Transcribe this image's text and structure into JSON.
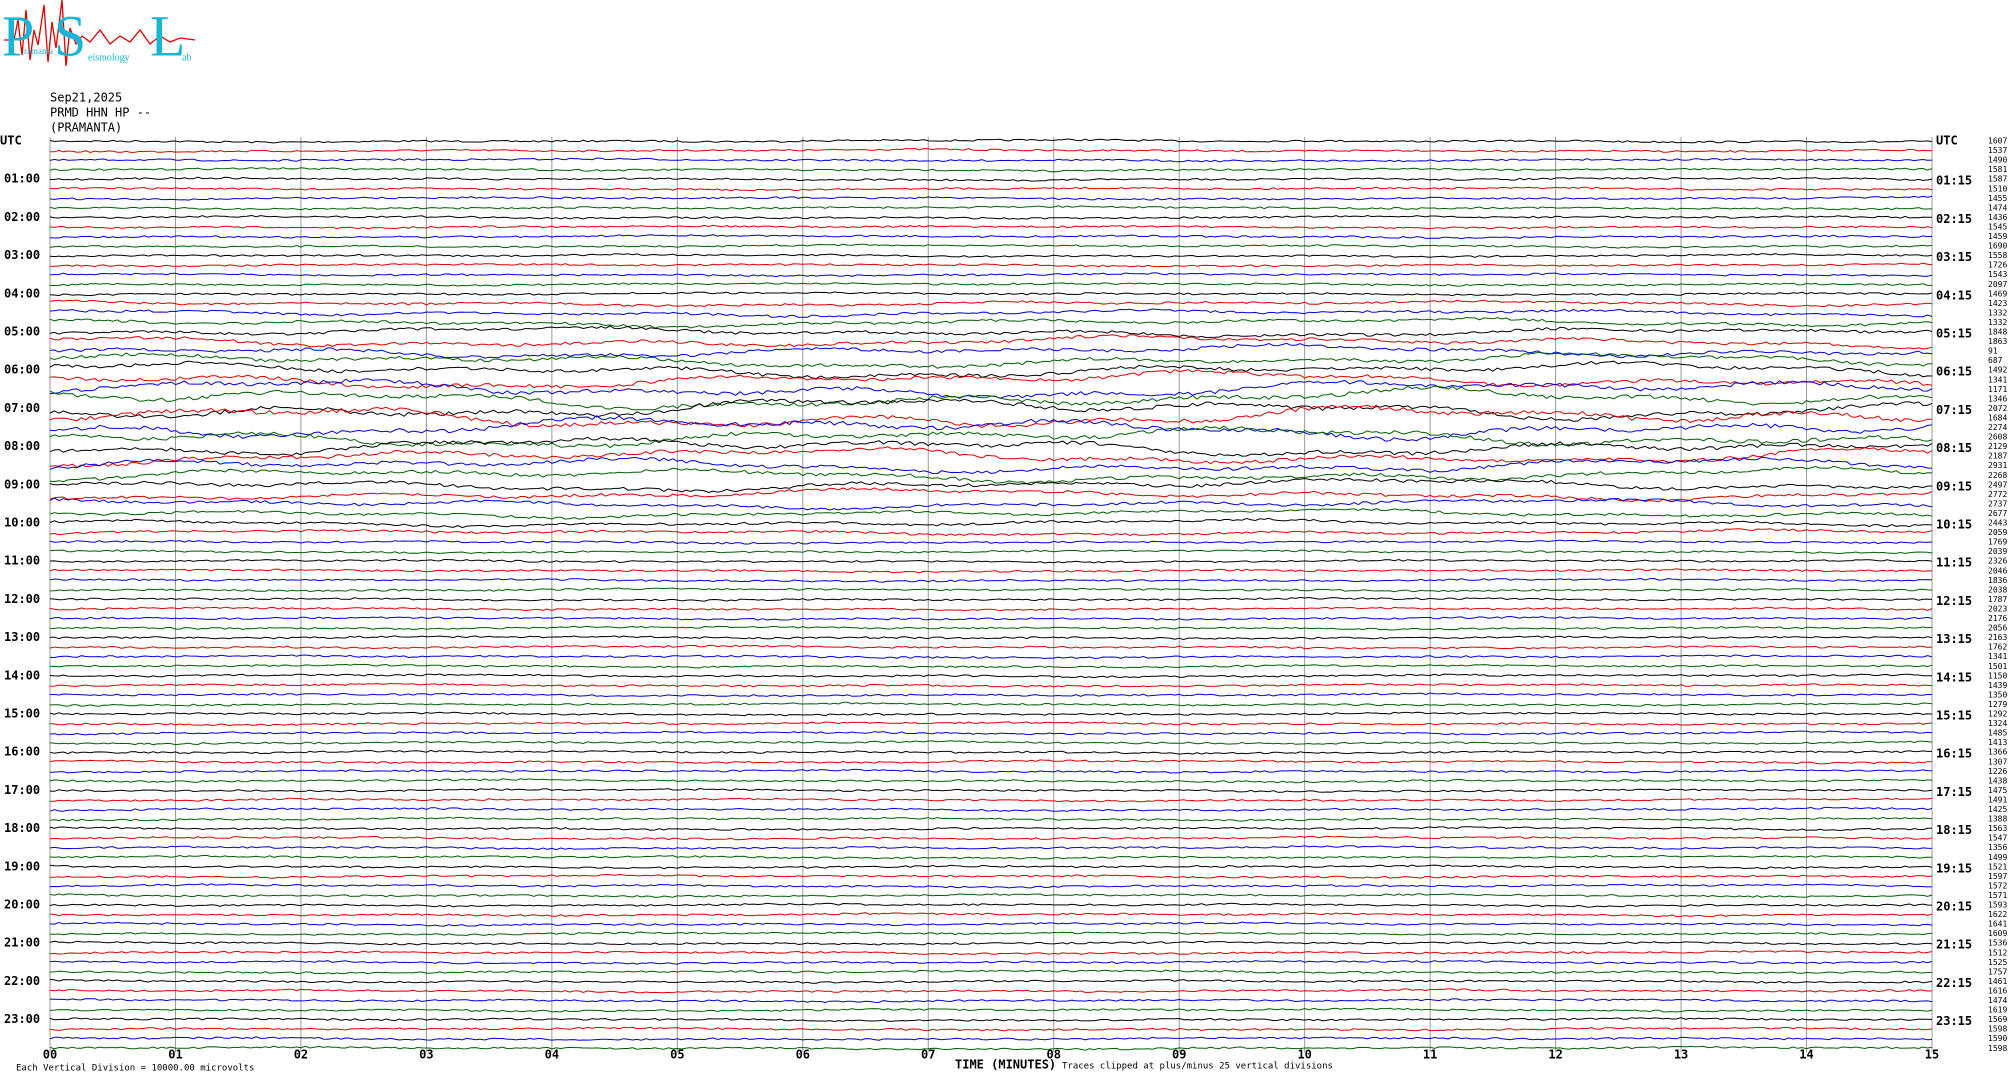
{
  "logo": {
    "p": "P",
    "s": "S",
    "l": "L",
    "small1": "ramanta",
    "small2": "eismology",
    "small3": "ab"
  },
  "header": {
    "date": "Sep21,2025",
    "station": "PRMD HHN HP --",
    "place": "(PRAMANTA)"
  },
  "left_labels": [
    "UTC",
    "01:00",
    "02:00",
    "03:00",
    "04:00",
    "05:00",
    "06:00",
    "07:00",
    "08:00",
    "09:00",
    "10:00",
    "11:00",
    "12:00",
    "13:00",
    "14:00",
    "15:00",
    "16:00",
    "17:00",
    "18:00",
    "19:00",
    "20:00",
    "21:00",
    "22:00",
    "23:00"
  ],
  "right_labels": [
    "UTC",
    "01:15",
    "02:15",
    "03:15",
    "04:15",
    "05:15",
    "06:15",
    "07:15",
    "08:15",
    "09:15",
    "10:15",
    "11:15",
    "12:15",
    "13:15",
    "14:15",
    "15:15",
    "16:15",
    "17:15",
    "18:15",
    "19:15",
    "20:15",
    "21:15",
    "22:15",
    "23:15"
  ],
  "trace_numbers": [
    "1607",
    "1537",
    "1490",
    "1581",
    "1587",
    "1510",
    "1455",
    "1474",
    "1436",
    "1545",
    "1459",
    "1690",
    "1558",
    "1726",
    "1543",
    "2097",
    "1469",
    "1423",
    "1332",
    "1332",
    "1848",
    "1863",
    "91",
    "687",
    "1492",
    "1341",
    "1171",
    "1346",
    "2072",
    "1684",
    "2274",
    "2608",
    "2129",
    "2187",
    "2931",
    "2268",
    "2497",
    "2772",
    "2737",
    "2677",
    "2443",
    "2059",
    "1769",
    "2039",
    "2326",
    "2046",
    "1836",
    "2038",
    "1787",
    "2023",
    "2176",
    "2056",
    "2163",
    "1762",
    "1341",
    "1501",
    "1150",
    "1439",
    "1350",
    "1279",
    "1292",
    "1324",
    "1485",
    "1413",
    "1366",
    "1307",
    "1226",
    "1438",
    "1475",
    "1491",
    "1425",
    "1388",
    "1563",
    "1547",
    "1356",
    "1499",
    "1521",
    "1597",
    "1572",
    "1571",
    "1593",
    "1622",
    "1641",
    "1609",
    "1536",
    "1512",
    "1525",
    "1757",
    "1461",
    "1616",
    "1474",
    "1619",
    "1569",
    "1598",
    "1590",
    "1598"
  ],
  "trace_colors": [
    "#000000",
    "#e00000",
    "#0000e0",
    "#006000"
  ],
  "xticks": [
    {
      "value": 0,
      "label": "00"
    },
    {
      "value": 1,
      "label": "01"
    },
    {
      "value": 2,
      "label": "02"
    },
    {
      "value": 3,
      "label": "03"
    },
    {
      "value": 4,
      "label": "04"
    },
    {
      "value": 5,
      "label": "05"
    },
    {
      "value": 6,
      "label": "06"
    },
    {
      "value": 7,
      "label": "07"
    },
    {
      "value": 8,
      "label": "08"
    },
    {
      "value": 9,
      "label": "09"
    },
    {
      "value": 10,
      "label": "10"
    },
    {
      "value": 11,
      "label": "11"
    },
    {
      "value": 12,
      "label": "12"
    },
    {
      "value": 13,
      "label": "13"
    },
    {
      "value": 14,
      "label": "14"
    },
    {
      "value": 15,
      "label": "15"
    }
  ],
  "xlim": [
    0,
    15
  ],
  "footer": {
    "division": "Each Vertical Division = 10000.00 microvolts",
    "xlabel": "TIME (MINUTES)",
    "clip": "Traces clipped at plus/minus 25 vertical divisions"
  }
}
